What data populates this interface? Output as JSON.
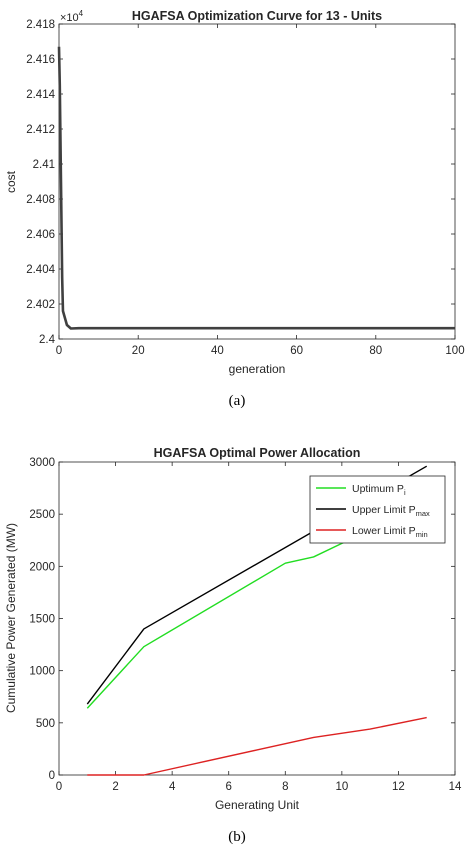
{
  "chart_data": [
    {
      "type": "line",
      "panel_label": "(a)",
      "title": "HGAFSA Optimization Curve for 13 - Units",
      "xlabel": "generation",
      "ylabel": "cost",
      "y_multiplier_label": "×10",
      "y_multiplier_exponent": "4",
      "xlim": [
        0,
        100
      ],
      "ylim": [
        2.4,
        2.418
      ],
      "xticks": [
        0,
        20,
        40,
        60,
        80,
        100
      ],
      "xtick_labels": [
        "0",
        "20",
        "40",
        "60",
        "80",
        "100"
      ],
      "yticks": [
        2.4,
        2.402,
        2.404,
        2.406,
        2.408,
        2.41,
        2.412,
        2.414,
        2.416,
        2.418
      ],
      "ytick_labels": [
        "2.4",
        "2.402",
        "2.404",
        "2.406",
        "2.408",
        "2.41",
        "2.412",
        "2.414",
        "2.416",
        "2.418"
      ],
      "grid": false,
      "series": [
        {
          "color": "#404040",
          "x": [
            0,
            0.2,
            0.5,
            0.8,
            1,
            1.5,
            2,
            3,
            5,
            100
          ],
          "y": [
            2.4167,
            2.4145,
            2.409,
            2.4035,
            2.4016,
            2.4012,
            2.4008,
            2.4006,
            2.40062,
            2.40062
          ]
        }
      ]
    },
    {
      "type": "line",
      "panel_label": "(b)",
      "title": "HGAFSA Optimal Power Allocation",
      "xlabel": "Generating Unit",
      "ylabel": "Cumulative Power Generated (MW)",
      "xlim": [
        0,
        14
      ],
      "ylim": [
        0,
        3000
      ],
      "xticks": [
        0,
        2,
        4,
        6,
        8,
        10,
        12,
        14
      ],
      "xtick_labels": [
        "0",
        "2",
        "4",
        "6",
        "8",
        "10",
        "12",
        "14"
      ],
      "yticks": [
        0,
        500,
        1000,
        1500,
        2000,
        2500,
        3000
      ],
      "ytick_labels": [
        "0",
        "500",
        "1000",
        "1500",
        "2000",
        "2500",
        "3000"
      ],
      "grid": false,
      "legend_position": "top-right",
      "series": [
        {
          "name": "Uptimum P",
          "name_sub": "i",
          "color": "#22dd22",
          "x": [
            1,
            3,
            8,
            9,
            10,
            11,
            12,
            13
          ],
          "y": [
            640,
            1230,
            2030,
            2090,
            2220,
            2350,
            2480,
            2600
          ]
        },
        {
          "name": "Upper Limit P",
          "name_sub": "max",
          "color": "#000000",
          "x": [
            1,
            3,
            13
          ],
          "y": [
            680,
            1400,
            2960
          ]
        },
        {
          "name": "Lower Limit P",
          "name_sub": "min",
          "color": "#dd2222",
          "x": [
            1,
            3,
            5,
            7,
            9,
            11,
            13
          ],
          "y": [
            0,
            0,
            120,
            240,
            360,
            440,
            550
          ]
        }
      ]
    }
  ]
}
